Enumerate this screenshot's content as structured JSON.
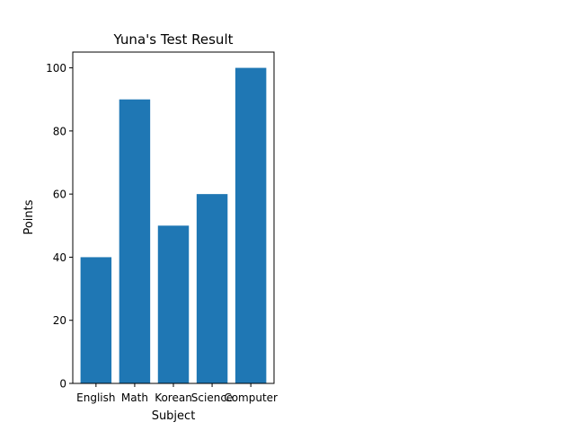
{
  "chart_data": {
    "type": "bar",
    "title": "Yuna's Test Result",
    "xlabel": "Subject",
    "ylabel": "Points",
    "categories": [
      "English",
      "Math",
      "Korean",
      "Science",
      "Computer"
    ],
    "values": [
      40,
      90,
      50,
      60,
      100
    ],
    "ylim": [
      0,
      105
    ],
    "yticks": [
      0,
      20,
      40,
      60,
      80,
      100
    ],
    "bar_color": "#1f77b4",
    "grid": false,
    "legend": "none"
  }
}
